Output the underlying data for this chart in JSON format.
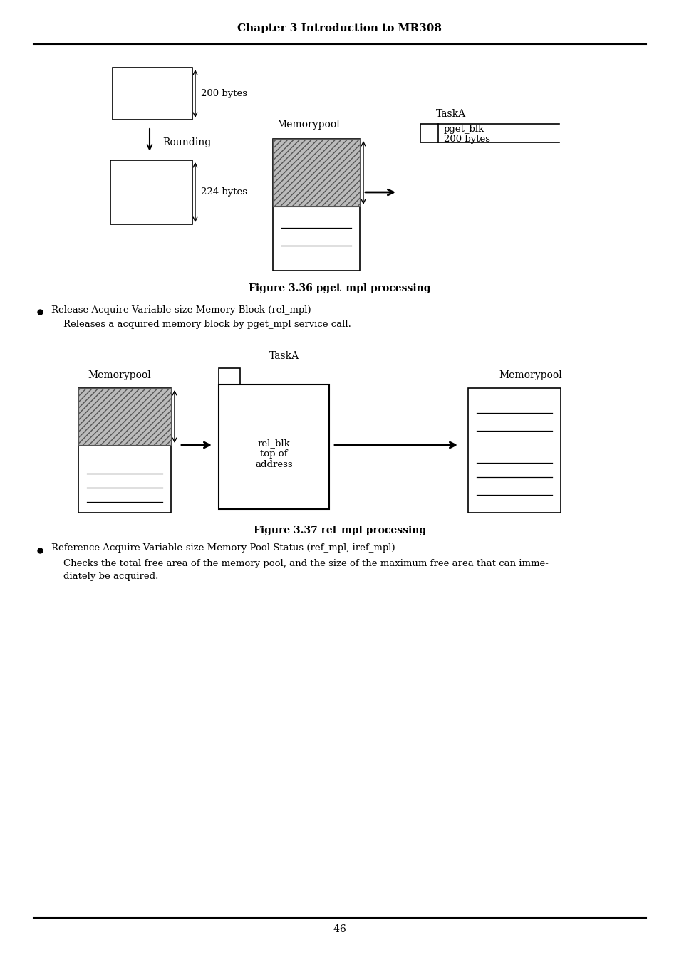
{
  "page_title": "Chapter 3 Introduction to MR308",
  "fig1_caption": "Figure 3.36 pget_mpl processing",
  "fig2_caption": "Figure 3.37 rel_mpl processing",
  "bullet1_title": "Release Acquire Variable-size Memory Block (rel_mpl)",
  "bullet1_body": "Releases a acquired memory block by pget_mpl service call.",
  "bullet2_title": "Reference Acquire Variable-size Memory Pool Status (ref_mpl, iref_mpl)",
  "bullet2_body1": "Checks the total free area of the memory pool, and the size of the maximum free area that can imme-",
  "bullet2_body2": "diately be acquired.",
  "page_number": "- 46 -",
  "bg_color": "#ffffff",
  "text_color": "#000000"
}
